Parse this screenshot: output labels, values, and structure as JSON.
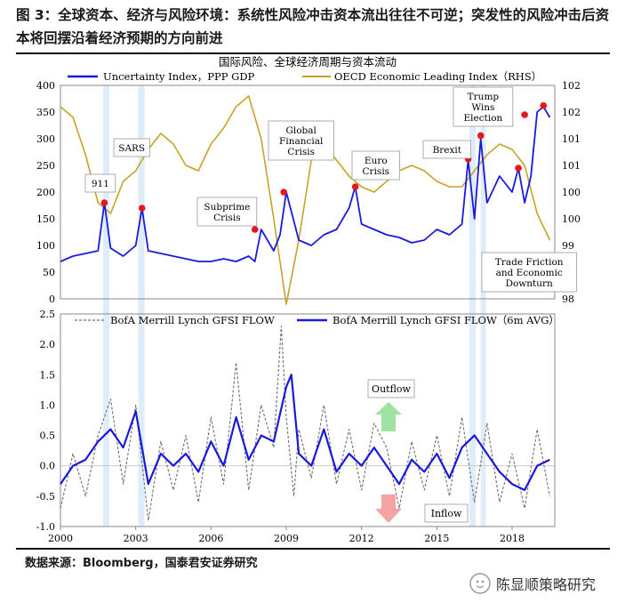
{
  "caption": "图 3：全球资本、经济与风险环境：系统性风险冲击资本流出往往不可逆；突发性的风险冲击后资本将回摆沿着经济预期的方向前进",
  "source": "数据来源：Bloomberg，国泰君安证券研究",
  "watermark": "陈显顺策略研究",
  "colors": {
    "blue": "#1a1adb",
    "gold": "#c9a227",
    "gray": "#6e6e6e",
    "red": "#e8141e",
    "band": "#d6e8f8",
    "green": "#9fe3a4",
    "pink": "#f5a3a3"
  },
  "chart_data": [
    {
      "type": "line",
      "title": "国际风险、全球经济周期与资本流动",
      "series": [
        {
          "name": "Uncertainty Index，PPP GDP",
          "axis": "left",
          "color": "#1a1adb",
          "x": [
            2000.0,
            2000.5,
            2001.0,
            2001.5,
            2001.75,
            2002.0,
            2002.5,
            2003.0,
            2003.25,
            2003.5,
            2004.0,
            2004.5,
            2005.0,
            2005.5,
            2006.0,
            2006.5,
            2007.0,
            2007.5,
            2007.75,
            2008.0,
            2008.5,
            2008.75,
            2009.0,
            2009.5,
            2010.0,
            2010.5,
            2011.0,
            2011.5,
            2011.75,
            2012.0,
            2012.5,
            2013.0,
            2013.5,
            2014.0,
            2014.5,
            2015.0,
            2015.5,
            2016.0,
            2016.25,
            2016.5,
            2016.75,
            2017.0,
            2017.5,
            2018.0,
            2018.25,
            2018.5,
            2018.75,
            2019.0,
            2019.25,
            2019.5
          ],
          "values": [
            70,
            80,
            85,
            90,
            180,
            95,
            80,
            100,
            170,
            90,
            85,
            80,
            75,
            70,
            70,
            75,
            70,
            80,
            70,
            130,
            90,
            120,
            200,
            110,
            100,
            120,
            130,
            170,
            210,
            140,
            130,
            120,
            115,
            105,
            110,
            130,
            120,
            140,
            260,
            150,
            300,
            180,
            230,
            200,
            245,
            180,
            230,
            350,
            360,
            340
          ]
        },
        {
          "name": "OECD Economic Leading Index（RHS）",
          "axis": "right",
          "color": "#c9a227",
          "x": [
            2000.0,
            2000.5,
            2001.0,
            2001.5,
            2002.0,
            2002.5,
            2003.0,
            2003.5,
            2004.0,
            2004.5,
            2005.0,
            2005.5,
            2006.0,
            2006.5,
            2007.0,
            2007.5,
            2008.0,
            2008.5,
            2009.0,
            2009.5,
            2010.0,
            2010.5,
            2011.0,
            2011.5,
            2012.0,
            2012.5,
            2013.0,
            2013.5,
            2014.0,
            2014.5,
            2015.0,
            2015.5,
            2016.0,
            2016.5,
            2017.0,
            2017.5,
            2018.0,
            2018.5,
            2019.0,
            2019.5
          ],
          "values": [
            101.6,
            101.4,
            100.7,
            99.8,
            99.6,
            100.2,
            100.4,
            100.8,
            101.1,
            100.9,
            100.5,
            100.4,
            100.9,
            101.2,
            101.6,
            101.8,
            101.0,
            99.5,
            97.9,
            99.1,
            100.6,
            100.9,
            100.6,
            100.3,
            100.1,
            100.0,
            100.2,
            100.4,
            100.5,
            100.4,
            100.2,
            100.1,
            100.1,
            100.4,
            100.7,
            100.9,
            100.8,
            100.5,
            99.6,
            99.1
          ]
        }
      ],
      "x_range": [
        2000,
        2019.7
      ],
      "left_axis": {
        "range": [
          0,
          400
        ],
        "ticks": [
          "0",
          "50",
          "100",
          "150",
          "200",
          "250",
          "300",
          "350",
          "400"
        ]
      },
      "right_axis": {
        "range": [
          98,
          102
        ],
        "ticks": [
          "98",
          "99",
          "99",
          "100",
          "100",
          "101",
          "101",
          "102",
          "102"
        ]
      },
      "annotations": [
        "911",
        "SARS",
        "Subprime Crisis",
        "Global Financial Crisis",
        "Euro Crisis",
        "Brexit",
        "Trump Wins Election",
        "Trade Friction and Economic Downturn"
      ],
      "event_points": [
        {
          "x": 2001.75,
          "y": 180
        },
        {
          "x": 2003.25,
          "y": 170
        },
        {
          "x": 2007.75,
          "y": 130
        },
        {
          "x": 2008.9,
          "y": 200
        },
        {
          "x": 2011.75,
          "y": 210
        },
        {
          "x": 2016.25,
          "y": 262
        },
        {
          "x": 2016.75,
          "y": 306
        },
        {
          "x": 2018.25,
          "y": 245
        },
        {
          "x": 2018.5,
          "y": 345
        },
        {
          "x": 2019.25,
          "y": 362
        }
      ],
      "legend": "top"
    },
    {
      "type": "line",
      "series": [
        {
          "name": "BofA Merrill Lynch GFSI FLOW",
          "color": "#6e6e6e",
          "style": "dashed",
          "x": [
            2000.0,
            2000.5,
            2001.0,
            2001.5,
            2002.0,
            2002.5,
            2003.0,
            2003.5,
            2004.0,
            2004.5,
            2005.0,
            2005.5,
            2006.0,
            2006.5,
            2007.0,
            2007.5,
            2008.0,
            2008.5,
            2008.8,
            2009.0,
            2009.3,
            2009.5,
            2010.0,
            2010.5,
            2011.0,
            2011.5,
            2012.0,
            2012.5,
            2013.0,
            2013.5,
            2014.0,
            2014.5,
            2015.0,
            2015.5,
            2016.0,
            2016.5,
            2017.0,
            2017.5,
            2018.0,
            2018.5,
            2019.0,
            2019.5
          ],
          "values": [
            -0.7,
            0.2,
            -0.5,
            0.5,
            1.1,
            -0.3,
            1.0,
            -0.9,
            0.4,
            -0.4,
            0.5,
            -0.6,
            0.8,
            -0.3,
            1.7,
            -0.4,
            1.0,
            0.3,
            2.3,
            0.8,
            -0.5,
            0.6,
            -0.2,
            1.0,
            -0.3,
            0.6,
            -0.4,
            0.7,
            0.3,
            -0.7,
            0.4,
            -0.4,
            0.5,
            -0.5,
            0.8,
            -0.6,
            0.7,
            -0.6,
            0.2,
            -0.7,
            0.6,
            -0.5
          ]
        },
        {
          "name": "BofA Merrill Lynch GFSI FLOW（6m AVG）",
          "color": "#1a1adb",
          "style": "solid",
          "x": [
            2000.0,
            2000.5,
            2001.0,
            2001.5,
            2002.0,
            2002.5,
            2003.0,
            2003.5,
            2004.0,
            2004.5,
            2005.0,
            2005.5,
            2006.0,
            2006.5,
            2007.0,
            2007.5,
            2008.0,
            2008.5,
            2009.0,
            2009.2,
            2009.5,
            2010.0,
            2010.5,
            2011.0,
            2011.5,
            2012.0,
            2012.5,
            2013.0,
            2013.5,
            2014.0,
            2014.5,
            2015.0,
            2015.5,
            2016.0,
            2016.5,
            2017.0,
            2017.5,
            2018.0,
            2018.5,
            2019.0,
            2019.5
          ],
          "values": [
            -0.3,
            0.0,
            0.1,
            0.4,
            0.6,
            0.3,
            0.9,
            -0.3,
            0.2,
            0.0,
            0.2,
            -0.1,
            0.4,
            0.0,
            0.8,
            0.1,
            0.5,
            0.4,
            1.3,
            1.5,
            0.2,
            0.0,
            0.6,
            -0.1,
            0.2,
            0.0,
            0.3,
            0.0,
            -0.3,
            0.1,
            -0.1,
            0.2,
            -0.2,
            0.3,
            0.5,
            0.2,
            -0.1,
            -0.3,
            -0.4,
            0.0,
            0.1
          ]
        }
      ],
      "x_range": [
        2000,
        2019.7
      ],
      "y_range": [
        -1.0,
        2.5
      ],
      "y_ticks": [
        "-1.0",
        "-0.5",
        "0.0",
        "0.5",
        "1.0",
        "1.5",
        "2.0",
        "2.5"
      ],
      "x_ticks": [
        "2000",
        "2003",
        "2006",
        "2009",
        "2012",
        "2015",
        "2018"
      ],
      "annotations": [
        "Outflow",
        "Inflow"
      ],
      "legend": "top"
    }
  ]
}
